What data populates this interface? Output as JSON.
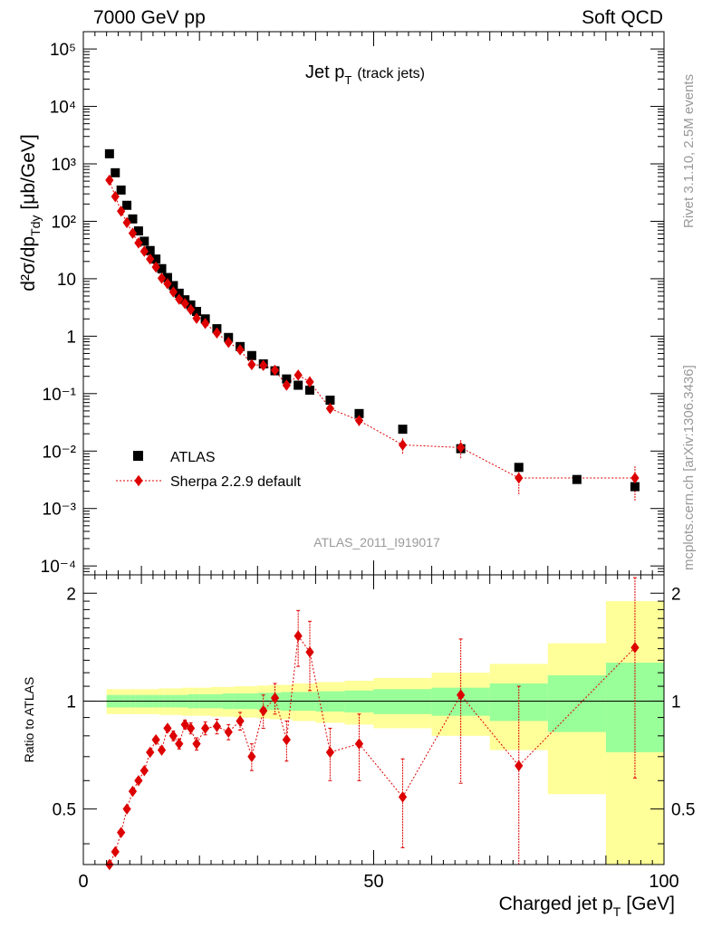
{
  "header": {
    "left": "7000 GeV pp",
    "right": "Soft QCD"
  },
  "side_labels": {
    "version": "Rivet 3.1.10,  2.5M events",
    "source": "mcplots.cern.ch [arXiv:1306.3436]"
  },
  "chart_data": [
    {
      "type": "scatter",
      "panel": "main",
      "title_main": "Jet p",
      "title_sub": "T",
      "title_suffix": "(track jets)",
      "ylabel_main": "d²σ/dp",
      "ylabel_sub": "Tdy",
      "ylabel_unit": "[μb/GeV]",
      "xlabel_main": "Charged jet p",
      "xlabel_sub": "T",
      "xlabel_unit": "[GeV]",
      "analysis_tag": "ATLAS_2011_I919017",
      "xlim": [
        0,
        100
      ],
      "ylim": [
        7e-05,
        200000
      ],
      "yscale": "log",
      "x_ticks": [
        "0",
        "50",
        "100"
      ],
      "y_ticks": [
        "10⁻⁴",
        "10⁻³",
        "10⁻²",
        "10⁻¹",
        "1",
        "10",
        "10²",
        "10³",
        "10⁴",
        "10⁵"
      ],
      "legend_position": "lower-left",
      "series": [
        {
          "name": "ATLAS",
          "marker": "square",
          "color": "#000000",
          "x": [
            4.5,
            5.5,
            6.5,
            7.5,
            8.5,
            9.5,
            10.5,
            11.5,
            12.5,
            13.5,
            14.5,
            15.5,
            16.5,
            17.5,
            18.5,
            19.5,
            21,
            23,
            25,
            27,
            29,
            31,
            33,
            35,
            37,
            39,
            42.5,
            47.5,
            55,
            65,
            75,
            85,
            95
          ],
          "y": [
            1500,
            700,
            350,
            190,
            110,
            68,
            45,
            31,
            22,
            15,
            10.5,
            7.6,
            5.6,
            4.3,
            3.5,
            2.7,
            2.0,
            1.35,
            0.95,
            0.66,
            0.46,
            0.33,
            0.25,
            0.18,
            0.14,
            0.115,
            0.077,
            0.045,
            0.024,
            0.011,
            0.0052,
            0.0032,
            0.0024
          ]
        },
        {
          "name": "Sherpa 2.2.9 default",
          "marker": "diamond",
          "color": "#dd0000",
          "x": [
            4.5,
            5.5,
            6.5,
            7.5,
            8.5,
            9.5,
            10.5,
            11.5,
            12.5,
            13.5,
            14.5,
            15.5,
            16.5,
            17.5,
            18.5,
            19.5,
            21,
            23,
            25,
            27,
            29,
            31,
            33,
            35,
            37,
            39,
            42.5,
            47.5,
            55,
            65,
            75,
            95
          ],
          "y": [
            520,
            270,
            150,
            95,
            62,
            42,
            30,
            22,
            16,
            10.2,
            8.2,
            5.9,
            4.4,
            3.7,
            2.9,
            2.05,
            1.67,
            1.14,
            0.78,
            0.58,
            0.32,
            0.31,
            0.255,
            0.14,
            0.21,
            0.16,
            0.055,
            0.034,
            0.0128,
            0.0115,
            0.0034,
            0.0034
          ],
          "yerr_rel": [
            0.01,
            0.01,
            0.01,
            0.01,
            0.015,
            0.015,
            0.02,
            0.02,
            0.02,
            0.025,
            0.025,
            0.03,
            0.03,
            0.03,
            0.035,
            0.04,
            0.04,
            0.05,
            0.05,
            0.06,
            0.08,
            0.1,
            0.1,
            0.12,
            0.18,
            0.25,
            0.15,
            0.2,
            0.3,
            0.35,
            0.5,
            0.6
          ]
        }
      ]
    },
    {
      "type": "scatter",
      "panel": "ratio",
      "ylabel": "Ratio to ATLAS",
      "xlim": [
        0,
        100
      ],
      "ylim": [
        0.35,
        2.25
      ],
      "yscale": "log",
      "y_ticks": [
        "0.5",
        "1",
        "2"
      ],
      "band_inner": {
        "edges": [
          4,
          5,
          6,
          7,
          8,
          9,
          10,
          11,
          12,
          13,
          14,
          15,
          16,
          17,
          18,
          19,
          20,
          22,
          24,
          26,
          28,
          30,
          32,
          34,
          36,
          38,
          40,
          45,
          50,
          60,
          70,
          80,
          90,
          100
        ],
        "half_width": [
          0.04,
          0.04,
          0.04,
          0.04,
          0.04,
          0.04,
          0.04,
          0.04,
          0.04,
          0.04,
          0.04,
          0.04,
          0.04,
          0.04,
          0.045,
          0.045,
          0.045,
          0.045,
          0.05,
          0.05,
          0.05,
          0.055,
          0.055,
          0.06,
          0.06,
          0.06,
          0.065,
          0.07,
          0.08,
          0.09,
          0.12,
          0.18,
          0.28
        ]
      },
      "band_outer": {
        "edges": [
          4,
          5,
          6,
          7,
          8,
          9,
          10,
          11,
          12,
          13,
          14,
          15,
          16,
          17,
          18,
          19,
          20,
          22,
          24,
          26,
          28,
          30,
          32,
          34,
          36,
          38,
          40,
          45,
          50,
          60,
          70,
          80,
          90,
          100
        ],
        "half_width": [
          0.08,
          0.08,
          0.08,
          0.08,
          0.08,
          0.08,
          0.08,
          0.08,
          0.08,
          0.085,
          0.085,
          0.085,
          0.085,
          0.09,
          0.09,
          0.09,
          0.09,
          0.095,
          0.095,
          0.1,
          0.1,
          0.105,
          0.11,
          0.11,
          0.12,
          0.12,
          0.13,
          0.14,
          0.16,
          0.2,
          0.27,
          0.45,
          0.9
        ]
      },
      "series": [
        {
          "name": "Sherpa 2.2.9 default",
          "marker": "diamond",
          "color": "#dd0000",
          "x": [
            4.5,
            5.5,
            6.5,
            7.5,
            8.5,
            9.5,
            10.5,
            11.5,
            12.5,
            13.5,
            14.5,
            15.5,
            16.5,
            17.5,
            18.5,
            19.5,
            21,
            23,
            25,
            27,
            29,
            31,
            33,
            35,
            37,
            39,
            42.5,
            47.5,
            55,
            65,
            75,
            95
          ],
          "y": [
            0.35,
            0.38,
            0.43,
            0.5,
            0.56,
            0.6,
            0.64,
            0.72,
            0.78,
            0.73,
            0.84,
            0.8,
            0.76,
            0.86,
            0.84,
            0.76,
            0.84,
            0.85,
            0.82,
            0.88,
            0.7,
            0.94,
            1.02,
            0.78,
            1.52,
            1.37,
            0.72,
            0.76,
            0.54,
            1.04,
            0.66,
            1.41
          ],
          "yerr": [
            0.01,
            0.01,
            0.01,
            0.01,
            0.01,
            0.01,
            0.015,
            0.015,
            0.02,
            0.02,
            0.02,
            0.025,
            0.025,
            0.025,
            0.03,
            0.03,
            0.035,
            0.04,
            0.04,
            0.05,
            0.06,
            0.1,
            0.1,
            0.1,
            0.27,
            0.3,
            0.12,
            0.16,
            0.15,
            0.45,
            0.44,
            0.8
          ]
        }
      ]
    }
  ]
}
